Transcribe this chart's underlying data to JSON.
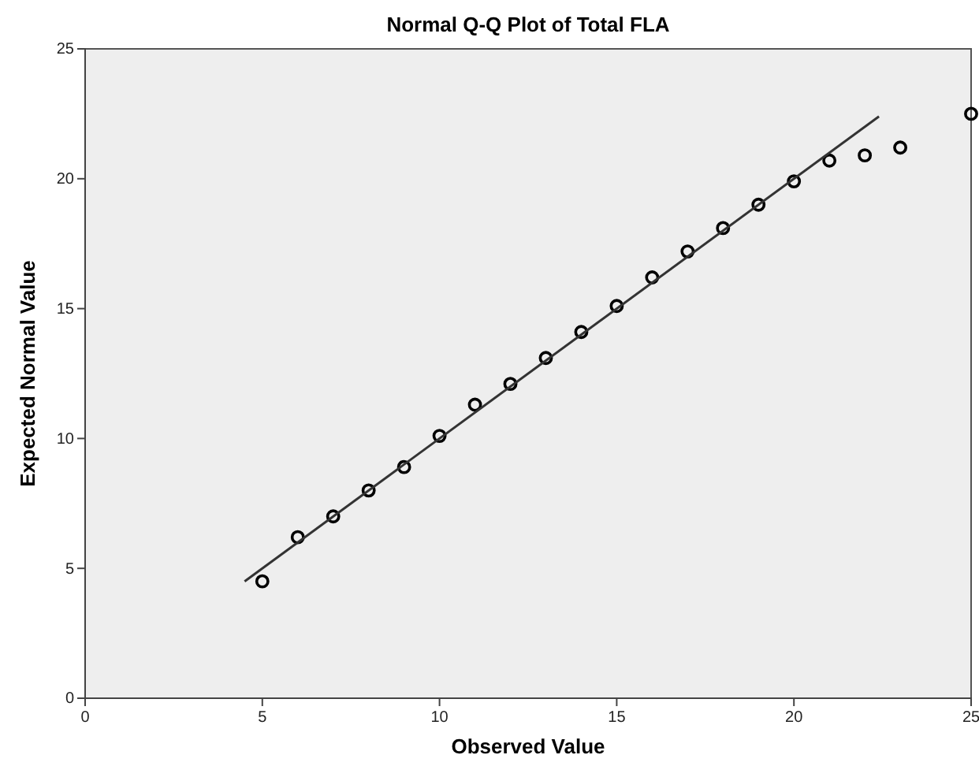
{
  "chart_data": {
    "type": "scatter",
    "title": "Normal Q-Q Plot of Total FLA",
    "xlabel": "Observed Value",
    "ylabel": "Expected Normal Value",
    "xlim": [
      0,
      25
    ],
    "xticks": [
      0,
      5,
      10,
      15,
      20,
      25
    ],
    "ylim": [
      0,
      25
    ],
    "yticks": [
      0,
      5,
      10,
      15,
      20,
      25
    ],
    "grid": false,
    "marker": "circle",
    "series": [
      {
        "color": "#000000",
        "x": [
          5,
          6,
          7,
          8,
          9,
          10,
          11,
          12,
          13,
          14,
          15,
          16,
          17,
          18,
          19,
          20,
          21,
          22,
          23,
          25
        ],
        "values": [
          4.5,
          6.2,
          7.0,
          8.0,
          8.9,
          10.1,
          11.3,
          12.1,
          13.1,
          14.1,
          15.1,
          16.2,
          17.2,
          18.1,
          19.0,
          19.9,
          20.7,
          20.9,
          21.2,
          22.5
        ]
      },
      {
        "type": "line",
        "color": "#333333",
        "x": [
          4.5,
          22.4
        ],
        "values": [
          4.5,
          22.4
        ],
        "line_style": "solid",
        "marker": "none"
      }
    ]
  }
}
